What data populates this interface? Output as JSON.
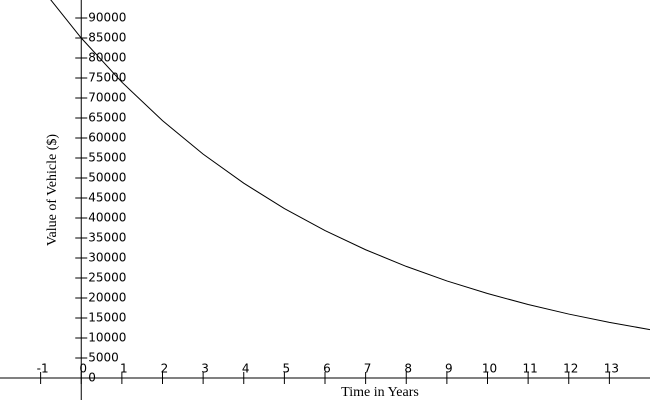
{
  "chart_data": {
    "type": "line",
    "xlabel": "Time in Years",
    "ylabel": "Value of Vehicle ($)",
    "x": [
      -1,
      0,
      1,
      2,
      3,
      4,
      5,
      6,
      7,
      8,
      9,
      10,
      11,
      12,
      13,
      14
    ],
    "series": [
      {
        "color": "#000000",
        "values": [
          97701,
          85000,
          73950,
          64337,
          55973,
          48696,
          42366,
          36858,
          32066,
          27898,
          24271,
          21116,
          18371,
          15983,
          13905,
          12097
        ]
      }
    ],
    "xlim": [
      -2,
      14
    ],
    "ylim": [
      -5500,
      94500
    ],
    "xticks": [
      -1,
      0,
      1,
      2,
      3,
      4,
      5,
      6,
      7,
      8,
      9,
      10,
      11,
      12,
      13
    ],
    "yticks": [
      0,
      5000,
      10000,
      15000,
      20000,
      25000,
      30000,
      35000,
      40000,
      45000,
      50000,
      55000,
      60000,
      65000,
      70000,
      75000,
      80000,
      85000,
      90000
    ]
  }
}
